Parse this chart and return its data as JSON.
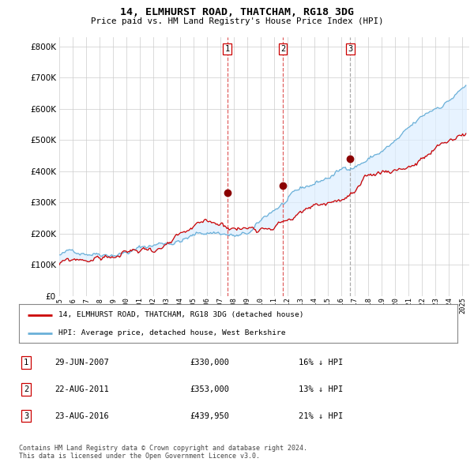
{
  "title": "14, ELMHURST ROAD, THATCHAM, RG18 3DG",
  "subtitle": "Price paid vs. HM Land Registry's House Price Index (HPI)",
  "ytick_values": [
    0,
    100000,
    200000,
    300000,
    400000,
    500000,
    600000,
    700000,
    800000
  ],
  "ylim": [
    0,
    830000
  ],
  "xlim_start": 1995.0,
  "xlim_end": 2025.5,
  "transaction_dates": [
    2007.49,
    2011.64,
    2016.65
  ],
  "transaction_prices": [
    330000,
    353000,
    439950
  ],
  "transaction_labels": [
    "1",
    "2",
    "3"
  ],
  "vline_colors": [
    "#e06060",
    "#e06060",
    "#aaaaaa"
  ],
  "vline_styles": [
    "--",
    "--",
    "--"
  ],
  "dot_color": "#8b0000",
  "legend_property_label": "14, ELMHURST ROAD, THATCHAM, RG18 3DG (detached house)",
  "legend_hpi_label": "HPI: Average price, detached house, West Berkshire",
  "property_line_color": "#cc0000",
  "hpi_line_color": "#6ab0d8",
  "fill_color": "#ddeeff",
  "table_rows": [
    [
      "1",
      "29-JUN-2007",
      "£330,000",
      "16% ↓ HPI"
    ],
    [
      "2",
      "22-AUG-2011",
      "£353,000",
      "13% ↓ HPI"
    ],
    [
      "3",
      "23-AUG-2016",
      "£439,950",
      "21% ↓ HPI"
    ]
  ],
  "footnote": "Contains HM Land Registry data © Crown copyright and database right 2024.\nThis data is licensed under the Open Government Licence v3.0.",
  "bg_color": "#ffffff",
  "grid_color": "#cccccc",
  "xtick_years": [
    1995,
    1996,
    1997,
    1998,
    1999,
    2000,
    2001,
    2002,
    2003,
    2004,
    2005,
    2006,
    2007,
    2008,
    2009,
    2010,
    2011,
    2012,
    2013,
    2014,
    2015,
    2016,
    2017,
    2018,
    2019,
    2020,
    2021,
    2022,
    2023,
    2024,
    2025
  ]
}
